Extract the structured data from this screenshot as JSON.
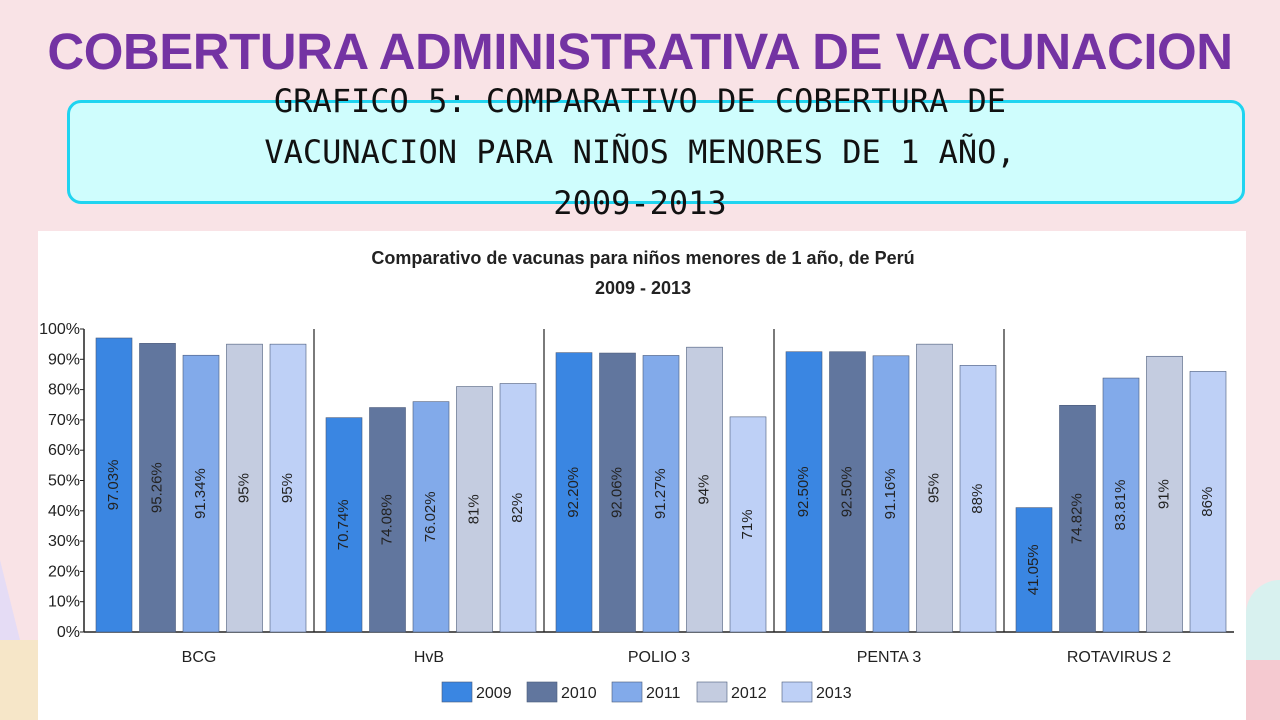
{
  "slide": {
    "title": "COBERTURA ADMINISTRATIVA DE VACUNACION",
    "subtitle": "GRAFICO 5: COMPARATIVO DE COBERTURA DE\nVACUNACION PARA NIÑOS MENORES DE 1 AÑO,\n2009-2013"
  },
  "colors": {
    "title": "#7433a3",
    "subtitle_border": "#1fd4f0",
    "subtitle_fill": "#cffdfd",
    "series": [
      "#3a86e2",
      "#61769e",
      "#82aaea",
      "#c4cce0",
      "#bed0f6"
    ]
  },
  "chart_data": {
    "type": "bar",
    "title": "Comparativo de vacunas para niños menores de 1 año, de Perú",
    "subtitle": "2009 - 2013",
    "categories": [
      "BCG",
      "HvB",
      "POLIO 3",
      "PENTA 3",
      "ROTAVIRUS 2"
    ],
    "ylim": [
      0,
      100
    ],
    "yticks": [
      "0%",
      "10%",
      "20%",
      "30%",
      "40%",
      "50%",
      "60%",
      "70%",
      "80%",
      "90%",
      "100%"
    ],
    "grid": false,
    "legend_position": "bottom",
    "series": [
      {
        "name": "2009",
        "values": [
          97.03,
          70.74,
          92.2,
          92.5,
          41.05
        ],
        "labels": [
          "97.03%",
          "70.74%",
          "92.20%",
          "92.50%",
          "41.05%"
        ]
      },
      {
        "name": "2010",
        "values": [
          95.26,
          74.08,
          92.06,
          92.5,
          74.82
        ],
        "labels": [
          "95.26%",
          "74.08%",
          "92.06%",
          "92.50%",
          "74.82%"
        ]
      },
      {
        "name": "2011",
        "values": [
          91.34,
          76.02,
          91.27,
          91.16,
          83.81
        ],
        "labels": [
          "91.34%",
          "76.02%",
          "91.27%",
          "91.16%",
          "83.81%"
        ]
      },
      {
        "name": "2012",
        "values": [
          95,
          81,
          94,
          95,
          91
        ],
        "labels": [
          "95%",
          "81%",
          "94%",
          "95%",
          "91%"
        ]
      },
      {
        "name": "2013",
        "values": [
          95,
          82,
          71,
          88,
          86
        ],
        "labels": [
          "95%",
          "82%",
          "71%",
          "88%",
          "86%"
        ]
      }
    ]
  }
}
